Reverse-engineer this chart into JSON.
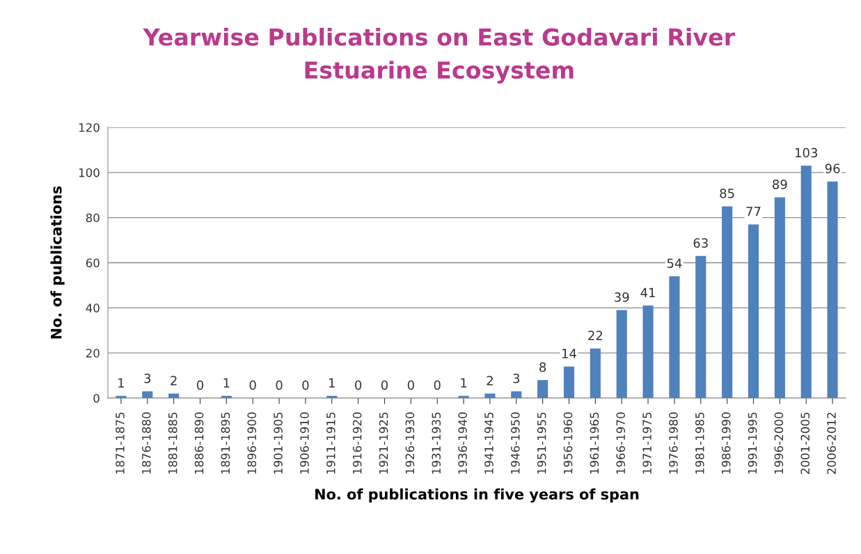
{
  "chart_data": {
    "type": "bar",
    "title": "Yearwise Publications on East Godavari River\nEstuarine Ecosystem",
    "xlabel": "No. of publications in five years of span",
    "ylabel": "No. of publications",
    "categories": [
      "1871-1875",
      "1876-1880",
      "1881-1885",
      "1886-1890",
      "1891-1895",
      "1896-1900",
      "1901-1905",
      "1906-1910",
      "1911-1915",
      "1916-1920",
      "1921-1925",
      "1926-1930",
      "1931-1935",
      "1936-1940",
      "1941-1945",
      "1946-1950",
      "1951-1955",
      "1956-1960",
      "1961-1965",
      "1966-1970",
      "1971-1975",
      "1976-1980",
      "1981-1985",
      "1986-1990",
      "1991-1995",
      "1996-2000",
      "2001-2005",
      "2006-2012"
    ],
    "values": [
      1,
      3,
      2,
      0,
      1,
      0,
      0,
      0,
      1,
      0,
      0,
      0,
      0,
      1,
      2,
      3,
      8,
      14,
      22,
      39,
      41,
      54,
      63,
      85,
      77,
      89,
      103,
      96
    ],
    "color": "#4f81bd",
    "ylim": [
      0,
      120
    ],
    "yticks": [
      0,
      20,
      40,
      60,
      80,
      100,
      120
    ],
    "grid": "y",
    "data_labels": true,
    "legend": false
  }
}
